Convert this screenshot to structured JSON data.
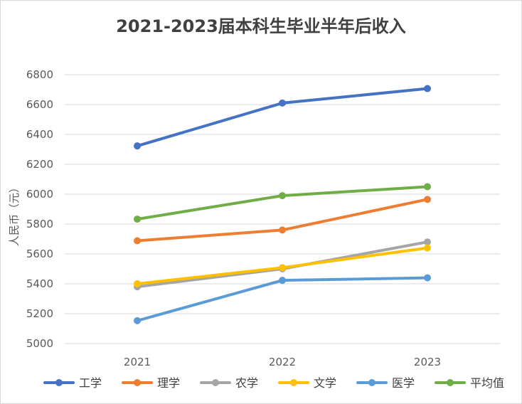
{
  "chart_data": {
    "type": "line",
    "title": "2021-2023届本科生毕业半年后收入",
    "xlabel": "",
    "ylabel": "人民币（元）",
    "categories": [
      "2021",
      "2022",
      "2023"
    ],
    "ylim": [
      5000,
      6800
    ],
    "yticks": [
      "5000",
      "5200",
      "5400",
      "5600",
      "5800",
      "6000",
      "6200",
      "6400",
      "6600",
      "6800"
    ],
    "grid": true,
    "legend_position": "bottom",
    "series": [
      {
        "name": "工学",
        "color": "#4472C4",
        "values": [
          6323,
          6610,
          6707
        ]
      },
      {
        "name": "理学",
        "color": "#ED7D31",
        "values": [
          5688,
          5760,
          5965
        ]
      },
      {
        "name": "农学",
        "color": "#A5A5A5",
        "values": [
          5380,
          5500,
          5680
        ]
      },
      {
        "name": "文学",
        "color": "#FFC000",
        "values": [
          5400,
          5508,
          5640
        ]
      },
      {
        "name": "医学",
        "color": "#5B9BD5",
        "values": [
          5153,
          5423,
          5440
        ]
      },
      {
        "name": "平均值",
        "color": "#70AD47",
        "values": [
          5833,
          5990,
          6050
        ]
      }
    ]
  }
}
